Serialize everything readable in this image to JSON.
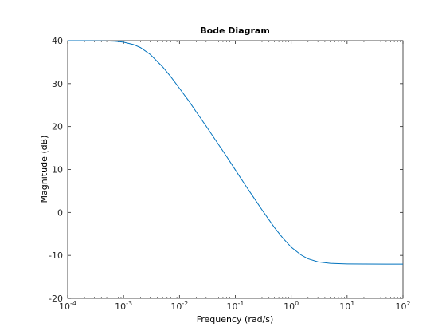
{
  "chart_data": {
    "type": "line",
    "title": "Bode Diagram",
    "xlabel": "Frequency  (rad/s)",
    "ylabel": "Magnitude (dB)",
    "x_scale": "log",
    "xlim": [
      0.0001,
      100
    ],
    "ylim": [
      -20,
      40
    ],
    "x_ticks": [
      {
        "base": "10",
        "exp": "-4"
      },
      {
        "base": "10",
        "exp": "-3"
      },
      {
        "base": "10",
        "exp": "-2"
      },
      {
        "base": "10",
        "exp": "-1"
      },
      {
        "base": "10",
        "exp": "0"
      },
      {
        "base": "10",
        "exp": "1"
      },
      {
        "base": "10",
        "exp": "2"
      }
    ],
    "y_ticks": [
      "-20",
      "-10",
      "0",
      "10",
      "20",
      "30",
      "40"
    ],
    "grid": false,
    "series": [
      {
        "color": "#0072bd",
        "x": [
          0.0001,
          0.0002,
          0.0003,
          0.0005,
          0.0007,
          0.001,
          0.0015,
          0.002,
          0.003,
          0.005,
          0.007,
          0.01,
          0.015,
          0.02,
          0.03,
          0.05,
          0.07,
          0.1,
          0.15,
          0.2,
          0.3,
          0.5,
          0.7,
          1,
          1.5,
          2,
          3,
          5,
          7,
          10,
          20,
          50,
          100
        ],
        "y": [
          40.0,
          39.99,
          39.98,
          39.94,
          39.85,
          39.65,
          39.1,
          38.4,
          36.8,
          33.9,
          31.6,
          28.9,
          25.8,
          23.4,
          20.1,
          15.8,
          13.0,
          9.9,
          6.4,
          4.0,
          0.6,
          -3.5,
          -5.9,
          -8.1,
          -9.9,
          -10.8,
          -11.5,
          -11.85,
          -11.93,
          -11.98,
          -12.02,
          -12.04,
          -12.04
        ]
      }
    ]
  }
}
